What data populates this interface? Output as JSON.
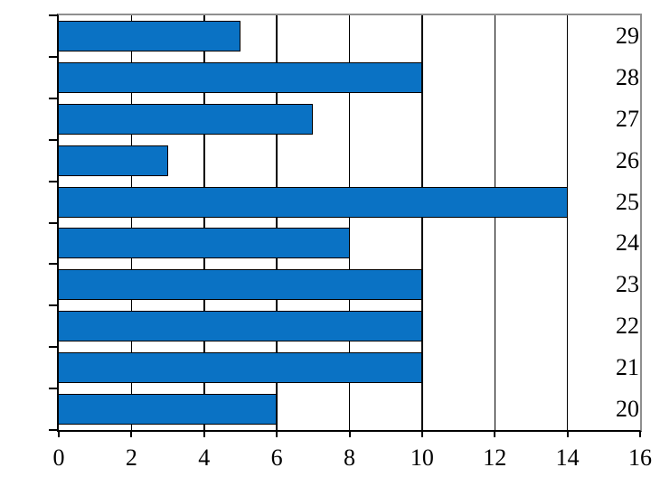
{
  "chart_data": {
    "type": "bar",
    "orientation": "horizontal",
    "title": "",
    "xlabel": "",
    "ylabel": "",
    "categories": [
      "29",
      "28",
      "27",
      "26",
      "25",
      "24",
      "23",
      "22",
      "21",
      "20"
    ],
    "values": [
      5,
      10,
      7,
      3,
      14,
      8,
      10,
      10,
      10,
      6
    ],
    "xlim": [
      0,
      16
    ],
    "x_ticks": [
      "0",
      "2",
      "4",
      "6",
      "8",
      "10",
      "12",
      "14",
      "16"
    ],
    "x_tick_values": [
      0,
      2,
      4,
      6,
      8,
      10,
      12,
      14,
      16
    ],
    "grid": true,
    "legend_position": "none",
    "colors": {
      "bar_fill": "#0a72c4",
      "bar_border": "#000000",
      "gridline": "#000000",
      "axis": "#000000",
      "frame": "#8f8f8f",
      "background": "#ffffff",
      "text": "#000000"
    }
  }
}
